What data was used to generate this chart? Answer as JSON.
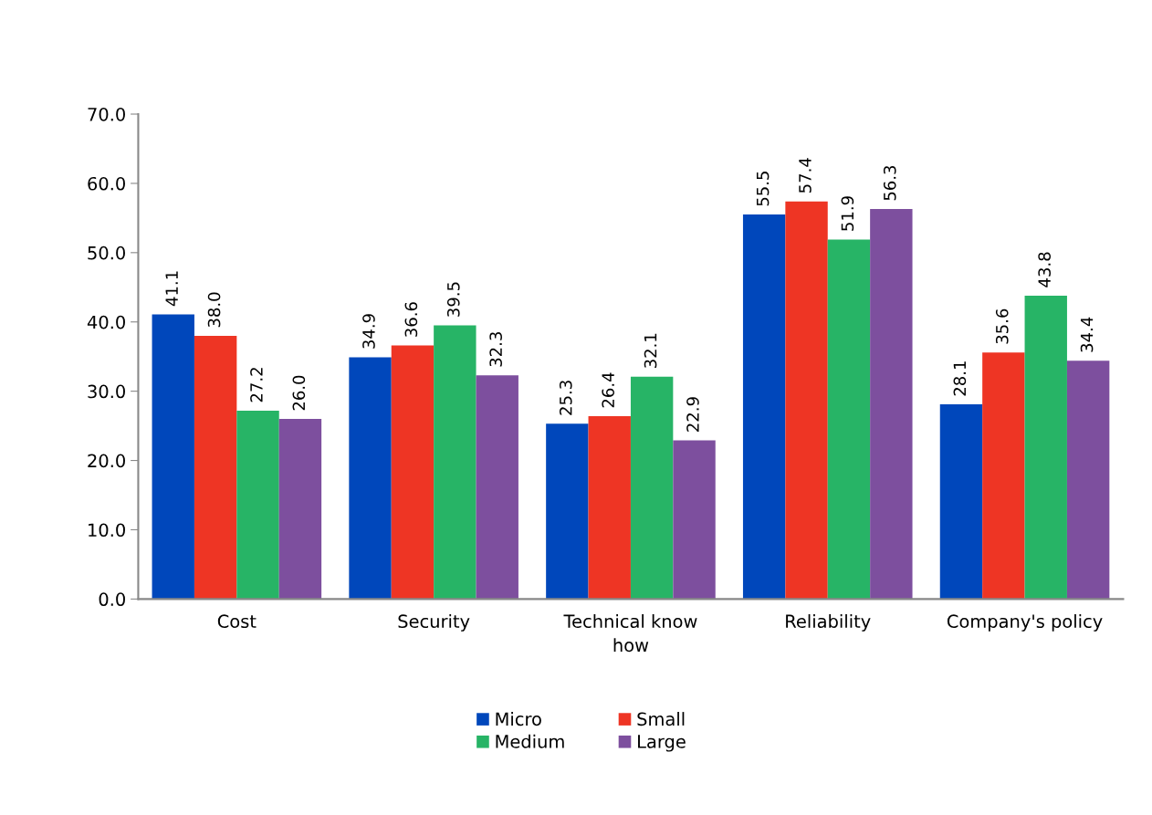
{
  "chart_data": {
    "type": "bar",
    "categories": [
      "Cost",
      "Security",
      "Technical know how",
      "Reliability",
      "Company's policy"
    ],
    "series": [
      {
        "name": "Micro",
        "color": "#0047bb",
        "values": [
          41.1,
          34.9,
          25.3,
          55.5,
          28.1
        ],
        "value_labels": [
          "41.1",
          "34.9",
          "25.3",
          "55.5",
          "28.1"
        ]
      },
      {
        "name": "Small",
        "color": "#ee3524",
        "values": [
          38,
          36.6,
          26.4,
          57.4,
          35.6
        ],
        "value_labels": [
          "38.0",
          "36.6",
          "26.4",
          "57.4",
          "35.6"
        ]
      },
      {
        "name": "Medium",
        "color": "#27b466",
        "values": [
          27.2,
          39.5,
          32.1,
          51.9,
          43.8
        ],
        "value_labels": [
          "27.2",
          "39.5",
          "32.1",
          "51.9",
          "43.8"
        ]
      },
      {
        "name": "Large",
        "color": "#7d4f9e",
        "values": [
          26,
          32.3,
          22.9,
          56.3,
          34.4
        ],
        "value_labels": [
          "26.0",
          "32.3",
          "22.9",
          "56.3",
          "34.4"
        ]
      }
    ],
    "ylim": [
      0,
      70
    ],
    "yticks": [
      {
        "value": 0,
        "label": "0.0"
      },
      {
        "value": 10,
        "label": "10.0"
      },
      {
        "value": 20,
        "label": "20.0"
      },
      {
        "value": 30,
        "label": "30.0"
      },
      {
        "value": 40,
        "label": "40.0"
      },
      {
        "value": 50,
        "label": "50.0"
      },
      {
        "value": 60,
        "label": "60.0"
      },
      {
        "value": 70,
        "label": "70.0"
      }
    ],
    "grid": false,
    "legend": "bottom"
  }
}
